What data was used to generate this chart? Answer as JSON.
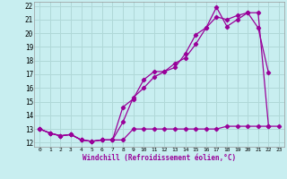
{
  "xlabel": "Windchill (Refroidissement éolien,°C)",
  "xlim": [
    -0.5,
    23.5
  ],
  "ylim": [
    11.7,
    22.3
  ],
  "yticks": [
    12,
    13,
    14,
    15,
    16,
    17,
    18,
    19,
    20,
    21,
    22
  ],
  "xticks": [
    0,
    1,
    2,
    3,
    4,
    5,
    6,
    7,
    8,
    9,
    10,
    11,
    12,
    13,
    14,
    15,
    16,
    17,
    18,
    19,
    20,
    21,
    22,
    23
  ],
  "bg_color": "#c8eef0",
  "grid_color": "#b0d8d8",
  "line_color": "#990099",
  "line1_x": [
    0,
    1,
    2,
    3,
    4,
    5,
    6,
    7,
    8,
    9,
    10,
    11,
    12,
    13,
    14,
    15,
    16,
    17,
    18,
    19,
    20,
    21,
    22,
    23
  ],
  "line1_y": [
    13.0,
    12.7,
    12.5,
    12.6,
    12.2,
    12.1,
    12.2,
    12.2,
    12.2,
    13.0,
    13.0,
    13.0,
    13.0,
    13.0,
    13.0,
    13.0,
    13.0,
    13.0,
    13.2,
    13.2,
    13.2,
    13.2,
    13.2,
    13.2
  ],
  "line2_x": [
    0,
    1,
    2,
    3,
    4,
    5,
    6,
    7,
    8,
    9,
    10,
    11,
    12,
    13,
    14,
    15,
    16,
    17,
    18,
    19,
    20,
    21,
    22
  ],
  "line2_y": [
    13.0,
    12.7,
    12.5,
    12.6,
    12.2,
    12.1,
    12.2,
    12.2,
    14.6,
    15.2,
    16.6,
    17.2,
    17.2,
    17.5,
    18.5,
    19.9,
    20.4,
    21.9,
    20.5,
    21.0,
    21.5,
    20.4,
    17.1
  ],
  "line3_x": [
    0,
    1,
    2,
    3,
    4,
    5,
    6,
    7,
    8,
    9,
    10,
    11,
    12,
    13,
    14,
    15,
    16,
    17,
    18,
    19,
    20,
    21,
    22
  ],
  "line3_y": [
    13.0,
    12.7,
    12.5,
    12.6,
    12.2,
    12.1,
    12.2,
    12.2,
    13.5,
    15.3,
    16.0,
    16.8,
    17.2,
    17.8,
    18.2,
    19.2,
    20.4,
    21.2,
    21.0,
    21.3,
    21.5,
    21.5,
    13.2
  ]
}
